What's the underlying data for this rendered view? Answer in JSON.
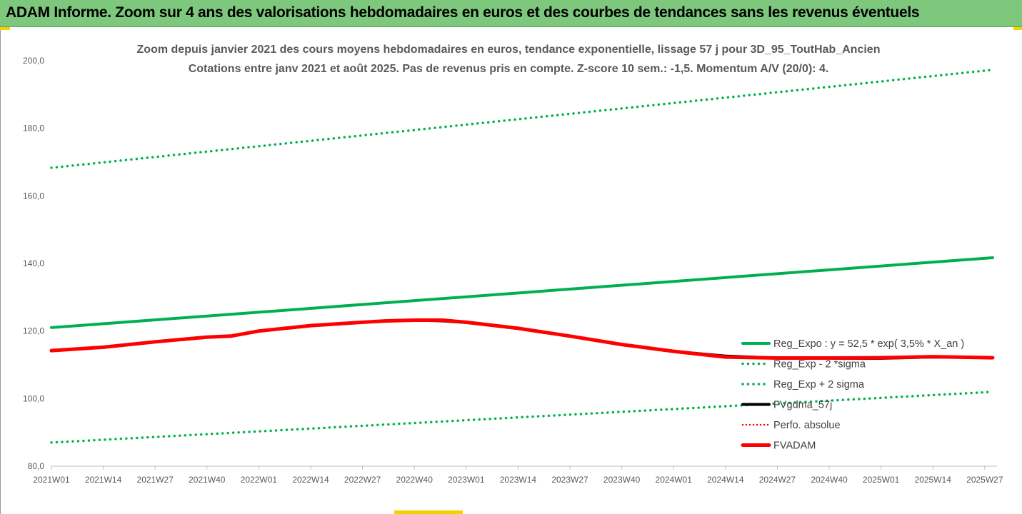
{
  "header": {
    "title": "ADAM Informe. Zoom sur 4 ans des valorisations hebdomadaires en euros et des courbes de tendances sans les revenus éventuels"
  },
  "chart_data": {
    "type": "line",
    "title": "Zoom depuis janvier 2021 des cours moyens hebdomadaires en euros, tendance exponentielle, lissage 57 j pour 3D_95_ToutHab_Ancien",
    "subtitle": "Cotations entre janv 2021 et août 2025. Pas de revenus pris en compte. Z-score 10 sem.: -1,5. Momentum A/V (20/0): 4.",
    "xlabel": "",
    "ylabel": "",
    "ylim": [
      80,
      200
    ],
    "yticks": [
      "80,0",
      "100,0",
      "120,0",
      "140,0",
      "160,0",
      "180,0",
      "200,0"
    ],
    "x_tick_labels": [
      "2021W01",
      "2021W14",
      "2021W27",
      "2021W40",
      "2022W01",
      "2022W14",
      "2022W27",
      "2022W40",
      "2023W01",
      "2023W14",
      "2023W27",
      "2023W40",
      "2024W01",
      "2024W14",
      "2024W27",
      "2024W40",
      "2025W01",
      "2025W14",
      "2025W27"
    ],
    "grid": false,
    "legend_position": "right",
    "series": [
      {
        "name": "Reg_Expo : y = 52,5 * exp( 3,5% *  X_an )",
        "color": "#00b050",
        "style": "solid",
        "points": [
          [
            0,
            121.0
          ],
          [
            236,
            141.7
          ]
        ]
      },
      {
        "name": "Reg_Exp - 2 *sigma",
        "color": "#00b050",
        "style": "dotted",
        "points": [
          [
            0,
            87.0
          ],
          [
            236,
            102.0
          ]
        ]
      },
      {
        "name": "Reg_Exp + 2 sigma",
        "color": "#00b050",
        "style": "dotted",
        "points": [
          [
            0,
            168.3
          ],
          [
            236,
            197.3
          ]
        ]
      },
      {
        "name": "FVgdma_57j",
        "color": "#000000",
        "style": "solid",
        "points": [
          [
            0,
            114.2
          ],
          [
            13,
            115.2
          ],
          [
            26,
            116.8
          ],
          [
            39,
            118.2
          ],
          [
            45,
            118.5
          ],
          [
            52,
            120.0
          ],
          [
            65,
            121.6
          ],
          [
            78,
            122.6
          ],
          [
            84,
            123.0
          ],
          [
            91,
            123.2
          ],
          [
            98,
            123.0
          ],
          [
            104,
            122.5
          ],
          [
            117,
            120.8
          ],
          [
            130,
            118.5
          ],
          [
            143,
            116.0
          ],
          [
            156,
            114.0
          ],
          [
            169,
            112.6
          ],
          [
            182,
            112.0
          ],
          [
            195,
            111.9
          ],
          [
            208,
            111.9
          ],
          [
            221,
            112.3
          ],
          [
            236,
            112.1
          ]
        ]
      },
      {
        "name": "Perfo. absolue",
        "color": "#ff0000",
        "style": "dotted",
        "points": []
      },
      {
        "name": "FVADAM",
        "color": "#ff0000",
        "style": "solid",
        "points": [
          [
            0,
            114.2
          ],
          [
            13,
            115.2
          ],
          [
            26,
            116.8
          ],
          [
            39,
            118.2
          ],
          [
            45,
            118.5
          ],
          [
            52,
            120.0
          ],
          [
            65,
            121.6
          ],
          [
            78,
            122.6
          ],
          [
            84,
            123.0
          ],
          [
            91,
            123.2
          ],
          [
            98,
            123.2
          ],
          [
            104,
            122.6
          ],
          [
            117,
            120.8
          ],
          [
            130,
            118.5
          ],
          [
            143,
            116.0
          ],
          [
            156,
            114.0
          ],
          [
            169,
            112.3
          ],
          [
            182,
            112.0
          ],
          [
            195,
            112.0
          ],
          [
            208,
            112.1
          ],
          [
            221,
            112.4
          ],
          [
            236,
            112.1
          ]
        ]
      }
    ]
  }
}
